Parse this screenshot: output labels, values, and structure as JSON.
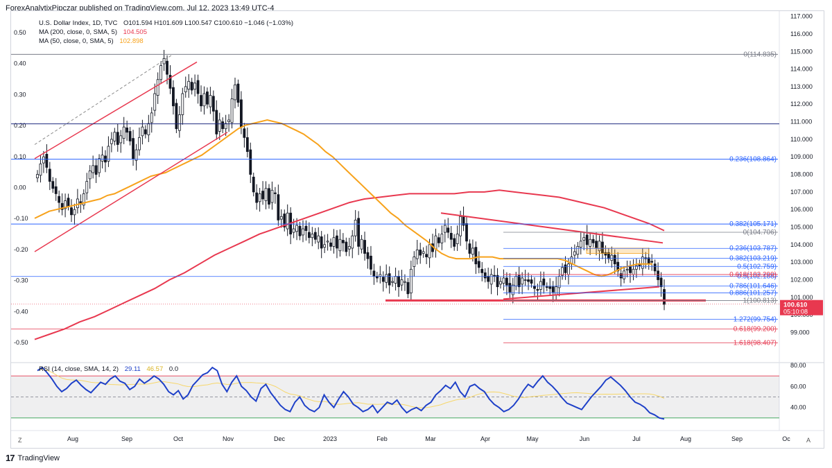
{
  "header": {
    "publisher": "ForexAnalytixPipczar published on TradingView.com, Jul 12, 2023 13:49 UTC-4"
  },
  "legend": {
    "symbol": "U.S. Dollar Index, 1D, TVC",
    "ohlc": "O101.594  H101.609  L100.547  C100.610  −1.046 (−1.03%)",
    "ma200_label": "MA (200, close, 0, SMA, 5)",
    "ma200_value": "104.505",
    "ma50_label": "MA (50, close, 0, SMA, 5)",
    "ma50_value": "102.898",
    "rsi_label": "RSI (14, close, SMA, 14, 2)",
    "rsi_value": "29.11",
    "rsi_ma_value": "46.57",
    "rsi_third": "0.0"
  },
  "footer": {
    "brand": "TradingView"
  },
  "corners": {
    "left": "Z",
    "right": "A"
  },
  "colors": {
    "candle": "#131722",
    "ma200": "#e8384f",
    "ma50": "#f7a21b",
    "rsi": "#1e40c8",
    "rsi_ma": "#f7d76a",
    "fib_blue": "#2962ff",
    "fib_red": "#e53950",
    "fib_gray": "#787b86",
    "trend_red": "#e8384f",
    "last_price_bg": "#e8384f"
  },
  "chart_data": {
    "type": "candlestick",
    "price_axis": {
      "ticks": [
        "117.000",
        "116.000",
        "115.000",
        "114.000",
        "113.000",
        "112.000",
        "111.000",
        "110.000",
        "109.000",
        "108.000",
        "107.000",
        "106.000",
        "105.000",
        "104.000",
        "103.000",
        "102.000",
        "101.000",
        "100.000",
        "99.000"
      ],
      "range": [
        97.4,
        117.3
      ]
    },
    "left_axis": {
      "ticks": [
        "0.50",
        "0.40",
        "0.30",
        "0.20",
        "0.10",
        "0.00",
        "-0.10",
        "-0.20",
        "-0.30",
        "-0.40",
        "-0.50"
      ]
    },
    "time_axis": {
      "labels": [
        "Aug",
        "Sep",
        "Oct",
        "Nov",
        "Dec",
        "2023",
        "Feb",
        "Mar",
        "Apr",
        "May",
        "Jun",
        "Jul",
        "Aug",
        "Sep",
        "Oc"
      ]
    },
    "last_price": {
      "value": "100.610",
      "countdown": "05:10:08"
    },
    "closes": [
      108.0,
      108.6,
      109.0,
      108.4,
      107.6,
      107.2,
      106.9,
      106.4,
      106.0,
      106.5,
      106.2,
      105.7,
      106.0,
      106.6,
      106.3,
      106.9,
      107.6,
      108.2,
      108.5,
      108.0,
      108.9,
      109.1,
      108.7,
      109.6,
      110.0,
      110.4,
      109.7,
      110.2,
      110.7,
      110.4,
      109.9,
      108.9,
      109.4,
      110.1,
      110.7,
      110.3,
      110.9,
      111.5,
      112.6,
      113.4,
      114.2,
      114.6,
      113.7,
      112.9,
      111.9,
      110.6,
      111.4,
      112.6,
      113.0,
      113.3,
      112.8,
      113.2,
      112.6,
      111.9,
      112.6,
      112.0,
      112.5,
      111.6,
      110.3,
      111.1,
      110.6,
      110.9,
      111.1,
      112.3,
      113.1,
      112.1,
      110.7,
      110.1,
      109.3,
      108.0,
      107.0,
      106.4,
      106.9,
      106.6,
      107.2,
      106.3,
      107.1,
      106.9,
      105.4,
      105.6,
      105.0,
      105.8,
      104.6,
      104.9,
      105.1,
      104.5,
      104.9,
      104.8,
      104.4,
      104.6,
      104.3,
      104.5,
      103.8,
      104.0,
      104.2,
      103.9,
      104.4,
      103.8,
      104.3,
      104.1,
      103.6,
      103.9,
      104.5,
      105.4,
      103.9,
      104.3,
      103.5,
      103.2,
      102.6,
      102.2,
      102.1,
      102.3,
      101.9,
      102.3,
      101.7,
      101.9,
      102.2,
      101.6,
      102.0,
      101.9,
      101.2,
      102.6,
      103.3,
      103.7,
      103.4,
      103.6,
      103.3,
      104.0,
      103.6,
      104.5,
      104.1,
      104.6,
      105.1,
      104.7,
      104.3,
      103.9,
      104.6,
      105.6,
      105.1,
      104.2,
      103.5,
      103.8,
      102.9,
      102.7,
      102.4,
      102.1,
      101.9,
      102.3,
      102.2,
      101.6,
      101.9,
      102.1,
      101.7,
      101.3,
      101.7,
      102.2,
      101.6,
      102.1,
      102.0,
      101.9,
      101.8,
      101.5,
      101.4,
      101.9,
      101.7,
      101.6,
      101.5,
      101.3,
      101.6,
      102.2,
      102.7,
      102.4,
      102.9,
      103.3,
      103.6,
      103.9,
      104.2,
      104.4,
      104.0,
      104.3,
      104.1,
      103.8,
      104.2,
      103.5,
      103.4,
      103.2,
      103.4,
      102.9,
      102.5,
      102.1,
      102.5,
      102.6,
      102.4,
      102.6,
      102.8,
      102.8,
      103.3,
      103.2,
      102.9,
      103.0,
      102.5,
      102.0,
      101.6,
      100.6
    ],
    "ma50": [
      105.5,
      105.7,
      105.9,
      106.0,
      106.1,
      106.2,
      106.3,
      106.4,
      106.5,
      106.6,
      106.8,
      106.9,
      107.1,
      107.3,
      107.5,
      107.7,
      107.9,
      108.0,
      108.1,
      108.3,
      108.5,
      108.7,
      108.9,
      109.1,
      109.4,
      109.7,
      110.0,
      110.3,
      110.6,
      110.8,
      110.9,
      111.0,
      111.1,
      111.0,
      110.9,
      110.7,
      110.5,
      110.3,
      110.0,
      109.7,
      109.3,
      109.0,
      108.6,
      108.2,
      107.8,
      107.4,
      107.0,
      106.6,
      106.2,
      105.8,
      105.5,
      105.1,
      104.8,
      104.5,
      104.2,
      103.8,
      103.5,
      103.3,
      103.2,
      103.2,
      103.2,
      103.3,
      103.3,
      103.3,
      103.2,
      103.2,
      103.2,
      103.2,
      103.2,
      103.2,
      103.2,
      103.2,
      103.2,
      103.1,
      102.9,
      102.7,
      102.5,
      102.3,
      102.2,
      102.3,
      102.5,
      102.7,
      102.8,
      102.9,
      102.9,
      102.9
    ],
    "ma200": [
      98.6,
      98.9,
      99.2,
      99.6,
      99.9,
      100.3,
      100.7,
      101.1,
      101.5,
      102.0,
      102.4,
      102.9,
      103.4,
      103.8,
      104.2,
      104.6,
      104.9,
      105.2,
      105.5,
      105.8,
      106.1,
      106.4,
      106.6,
      106.7,
      106.8,
      106.9,
      106.9,
      106.9,
      106.9,
      107.0,
      107.0,
      107.1,
      107.0,
      106.9,
      106.8,
      106.7,
      106.5,
      106.3,
      106.1,
      105.8,
      105.5,
      105.2,
      104.8
    ],
    "fib_levels": [
      {
        "label": "0(114.835)",
        "value": 114.835
      },
      {
        "label": "0.236(108.864)",
        "value": 108.864
      },
      {
        "label": "0.382(105.171)",
        "value": 105.171
      },
      {
        "label": "0(104.706)",
        "value": 104.706
      },
      {
        "label": "0.236(103.787)",
        "value": 103.787
      },
      {
        "label": "0.382(103.219)",
        "value": 103.219
      },
      {
        "label": "0.5(102.759)",
        "value": 102.759
      },
      {
        "label": "0.5(102.188)",
        "value": 102.188
      },
      {
        "label": "0.618(102.299)",
        "value": 102.299
      },
      {
        "label": "0.786(101.646)",
        "value": 101.646
      },
      {
        "label": "0.886(101.257)",
        "value": 101.257
      },
      {
        "label": "1(100.813)",
        "value": 100.813
      },
      {
        "label": "1.272(99.754)",
        "value": 99.754
      },
      {
        "label": "0.618(99.200)",
        "value": 99.2
      },
      {
        "label": "1.618(98.407)",
        "value": 98.407
      }
    ],
    "rsi_axis": {
      "ticks": [
        "80.00",
        "60.00",
        "40.00"
      ],
      "range": [
        20,
        80
      ]
    },
    "rsi": [
      75,
      78,
      73,
      67,
      60,
      55,
      58,
      63,
      66,
      61,
      57,
      54,
      59,
      64,
      62,
      67,
      70,
      65,
      63,
      57,
      60,
      67,
      63,
      66,
      70,
      67,
      62,
      55,
      52,
      56,
      48,
      52,
      61,
      66,
      71,
      73,
      78,
      75,
      62,
      55,
      64,
      70,
      60,
      56,
      50,
      46,
      58,
      62,
      54,
      48,
      42,
      38,
      36,
      45,
      50,
      42,
      38,
      36,
      40,
      52,
      45,
      40,
      48,
      55,
      50,
      43,
      40,
      36,
      38,
      42,
      35,
      40,
      45,
      43,
      47,
      40,
      35,
      38,
      40,
      37,
      42,
      45,
      52,
      56,
      61,
      58,
      64,
      55,
      50,
      60,
      62,
      58,
      55,
      48,
      43,
      40,
      36,
      38,
      42,
      48,
      56,
      62,
      59,
      65,
      70,
      64,
      60,
      55,
      49,
      44,
      42,
      40,
      38,
      44,
      50,
      55,
      60,
      66,
      69,
      65,
      61,
      56,
      50,
      45,
      43,
      40,
      35,
      33,
      30,
      29
    ]
  }
}
